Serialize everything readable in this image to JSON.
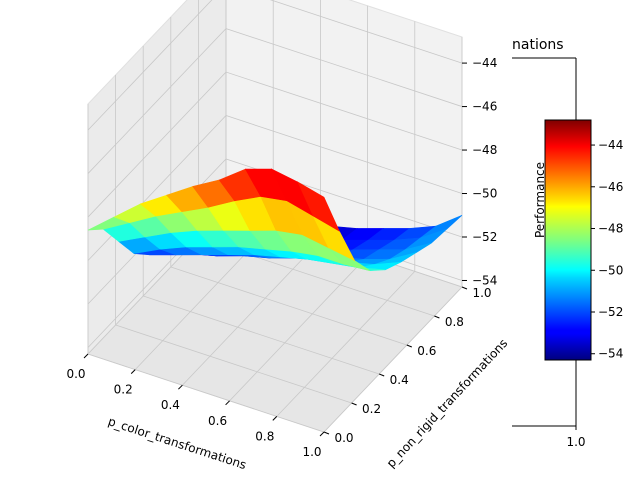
{
  "chart_data": {
    "type": "surface3d",
    "title": "",
    "title_visible_fragment": "nations",
    "xlabel": "p_color_transformations",
    "ylabel": "p_non_rigid_transformations",
    "zlabel": "",
    "x": [
      0.0,
      0.111,
      0.222,
      0.333,
      0.444,
      0.556,
      0.667,
      0.778,
      0.889,
      1.0
    ],
    "y": [
      0.0,
      0.111,
      0.222,
      0.333,
      0.444,
      0.556,
      0.667,
      0.778,
      0.889,
      1.0
    ],
    "z": [
      [
        -48.6,
        -49.3,
        -50.6,
        -51.9,
        -52.7,
        -53.3,
        -53.8,
        -54.0,
        -54.1,
        -54.2
      ],
      [
        -47.6,
        -48.6,
        -50.0,
        -51.3,
        -52.3,
        -53.0,
        -53.5,
        -53.8,
        -54.0,
        -54.1
      ],
      [
        -46.6,
        -47.9,
        -49.4,
        -50.8,
        -51.9,
        -52.7,
        -53.2,
        -53.6,
        -53.8,
        -54.0
      ],
      [
        -45.8,
        -47.3,
        -48.9,
        -50.4,
        -51.5,
        -52.3,
        -52.9,
        -53.3,
        -53.6,
        -53.8
      ],
      [
        -45.0,
        -46.7,
        -48.5,
        -50.0,
        -51.1,
        -52.0,
        -52.6,
        -53.0,
        -53.3,
        -53.5
      ],
      [
        -44.3,
        -46.0,
        -48.1,
        -49.7,
        -50.8,
        -51.6,
        -52.2,
        -52.7,
        -53.0,
        -53.2
      ],
      [
        -43.4,
        -45.4,
        -47.7,
        -49.4,
        -50.5,
        -51.3,
        -51.9,
        -52.3,
        -52.6,
        -52.8
      ],
      [
        -43.0,
        -45.2,
        -47.5,
        -49.2,
        -50.3,
        -51.0,
        -51.6,
        -51.9,
        -52.2,
        -52.4
      ],
      [
        -43.2,
        -45.5,
        -47.7,
        -49.2,
        -50.1,
        -50.7,
        -51.2,
        -51.5,
        -51.7,
        -51.9
      ],
      [
        -43.5,
        -45.8,
        -47.9,
        -49.1,
        -49.8,
        -50.2,
        -50.5,
        -50.8,
        -50.9,
        -51.0
      ]
    ],
    "x_ticks": [
      "0.0",
      "0.2",
      "0.4",
      "0.6",
      "0.8",
      "1.0"
    ],
    "y_ticks": [
      "0.0",
      "0.2",
      "0.4",
      "0.6",
      "0.8",
      "1.0"
    ],
    "z_ticks": [
      "−54",
      "−52",
      "−50",
      "−48",
      "−46",
      "−44"
    ],
    "zlim": [
      -54.3,
      -42.8
    ],
    "colormap": "jet",
    "colorbar": {
      "label": "Performance",
      "range": [
        -54.3,
        -42.8
      ],
      "ticks": [
        "−54",
        "−52",
        "−50",
        "−48",
        "−46",
        "−44"
      ]
    },
    "side_axis": {
      "tick": "1.0"
    },
    "grid": true,
    "colors": {
      "background_pane": "#f2f2f2",
      "grid": "#c8c8c8"
    }
  }
}
